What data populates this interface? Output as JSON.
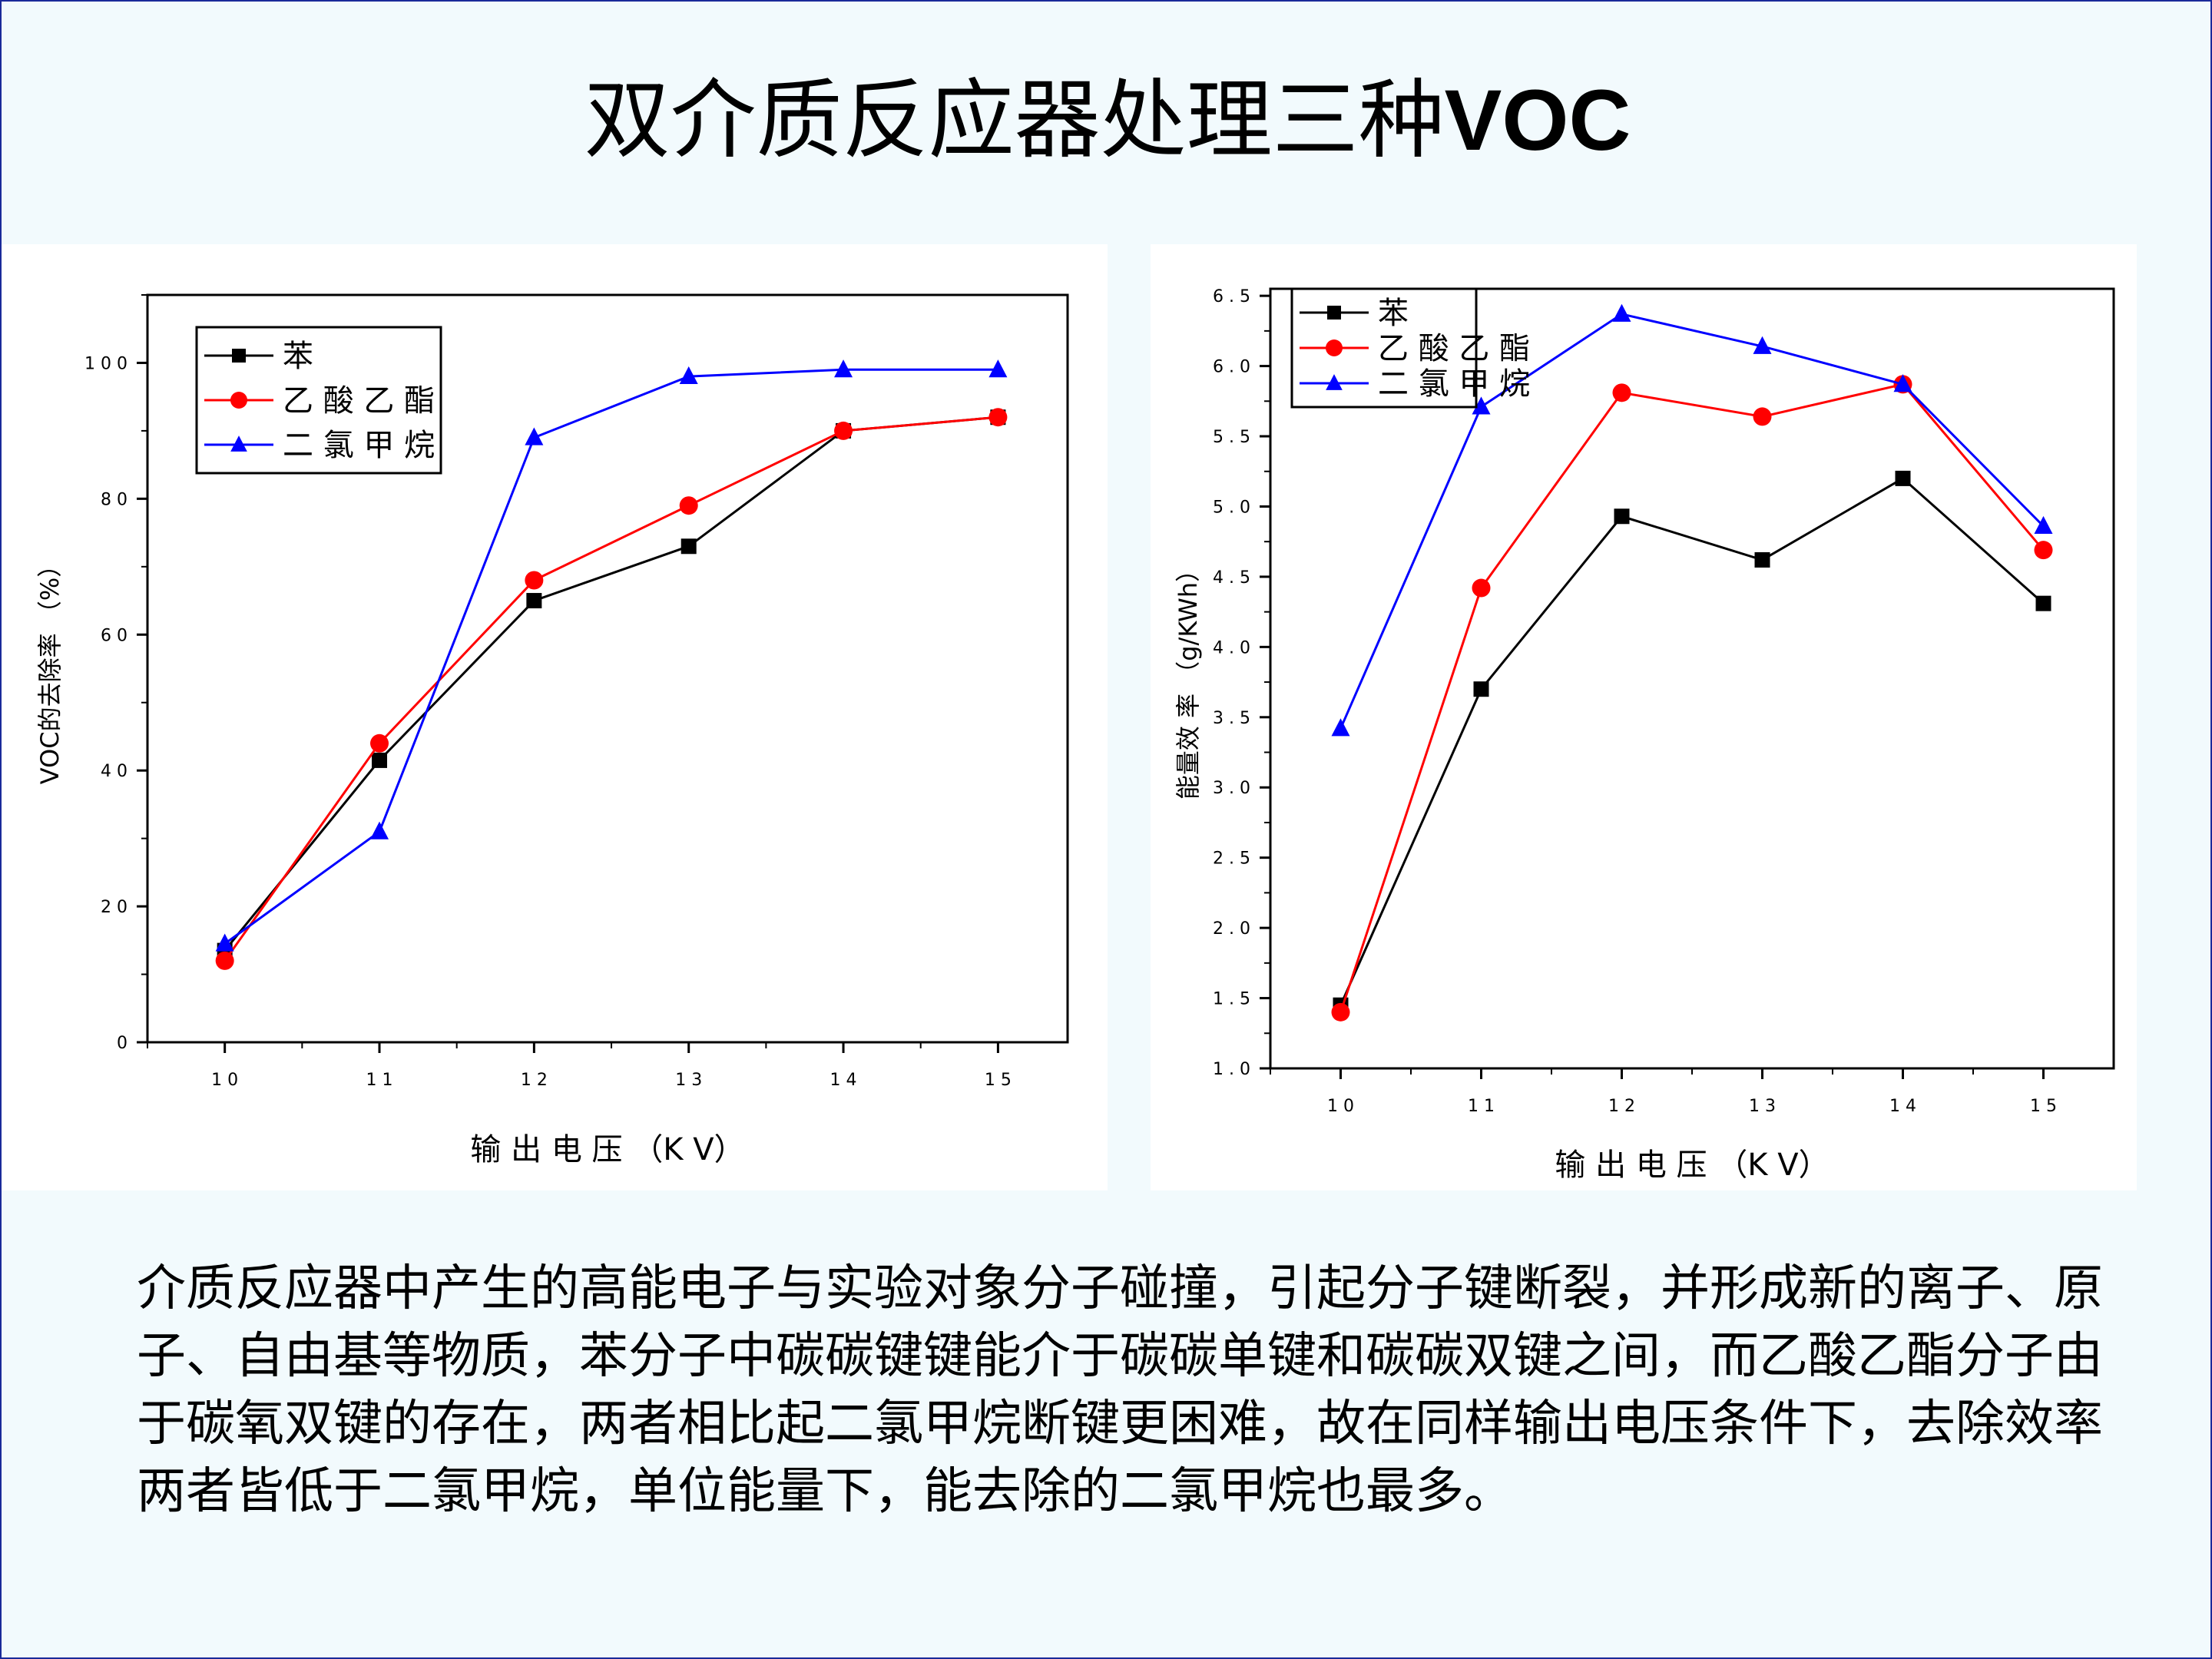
{
  "slide": {
    "title_cn": "双介质反应器处理三种",
    "title_en": "VOC",
    "body": "介质反应器中产生的高能电子与实验对象分子碰撞，引起分子键断裂，并形成新的离子、原子、自由基等物质，苯分子中碳碳键键能介于碳碳单键和碳碳双键之间，而乙酸乙酯分子由于碳氧双键的存在，两者相比起二氯甲烷断键更困难，故在同样输出电压条件下，去除效率两者皆低于二氯甲烷，单位能量下，能去除的二氯甲烷也最多。"
  },
  "chart_data": [
    {
      "type": "line",
      "xlabel": "输 出 电 压 （K V）",
      "ylabel": "VOC的去除率 （%）",
      "x": [
        10,
        11,
        12,
        13,
        14,
        15
      ],
      "x_tick_labels": [
        "1 0",
        "1 1",
        "1 2",
        "1 3",
        "1 4",
        "1 5"
      ],
      "xlim": [
        9.5,
        15.45
      ],
      "ylim": [
        0,
        110
      ],
      "y_ticks": [
        0,
        20,
        40,
        60,
        80,
        100
      ],
      "y_tick_labels": [
        "0",
        "2 0",
        "4 0",
        "6 0",
        "8 0",
        "1 0 0"
      ],
      "legend_position": "top-left",
      "grid": false,
      "series": [
        {
          "name": "苯",
          "color": "#000000",
          "marker": "square",
          "values": [
            13.5,
            41.5,
            65,
            73,
            90,
            92
          ]
        },
        {
          "name": "乙 酸 乙 酯",
          "color": "#ff0000",
          "marker": "circle",
          "values": [
            12,
            44,
            68,
            79,
            90,
            92
          ]
        },
        {
          "name": "二 氯 甲  烷",
          "color": "#0000ff",
          "marker": "triangle",
          "values": [
            14.5,
            31,
            89,
            98,
            99,
            99
          ]
        }
      ]
    },
    {
      "type": "line",
      "xlabel": "输 出 电 压 （K V）",
      "ylabel": "能量效  率  （g/KWh）",
      "x": [
        10,
        11,
        12,
        13,
        14,
        15
      ],
      "x_tick_labels": [
        "1 0",
        "1 1",
        "1 2",
        "1 3",
        "1 4",
        "1 5"
      ],
      "xlim": [
        9.5,
        15.5
      ],
      "ylim": [
        1.0,
        6.55
      ],
      "y_ticks": [
        1.0,
        1.5,
        2.0,
        2.5,
        3.0,
        3.5,
        4.0,
        4.5,
        5.0,
        5.5,
        6.0,
        6.5
      ],
      "y_tick_labels": [
        "1 . 0",
        "1 . 5",
        "2 . 0",
        "2 . 5",
        "3 . 0",
        "3 . 5",
        "4 . 0",
        "4 . 5",
        "5 . 0",
        "5 . 5",
        "6 . 0",
        "6 . 5"
      ],
      "legend_position": "top-left",
      "grid": false,
      "series": [
        {
          "name": "苯",
          "color": "#000000",
          "marker": "square",
          "values": [
            1.45,
            3.7,
            4.93,
            4.62,
            5.2,
            4.31
          ]
        },
        {
          "name": "乙 酸 乙 酯",
          "color": "#ff0000",
          "marker": "circle",
          "values": [
            1.4,
            4.42,
            5.81,
            5.64,
            5.87,
            4.69
          ]
        },
        {
          "name": "二 氯 甲  烷",
          "color": "#0000ff",
          "marker": "triangle",
          "values": [
            3.42,
            5.71,
            6.37,
            6.14,
            5.87,
            4.86
          ]
        }
      ]
    }
  ]
}
